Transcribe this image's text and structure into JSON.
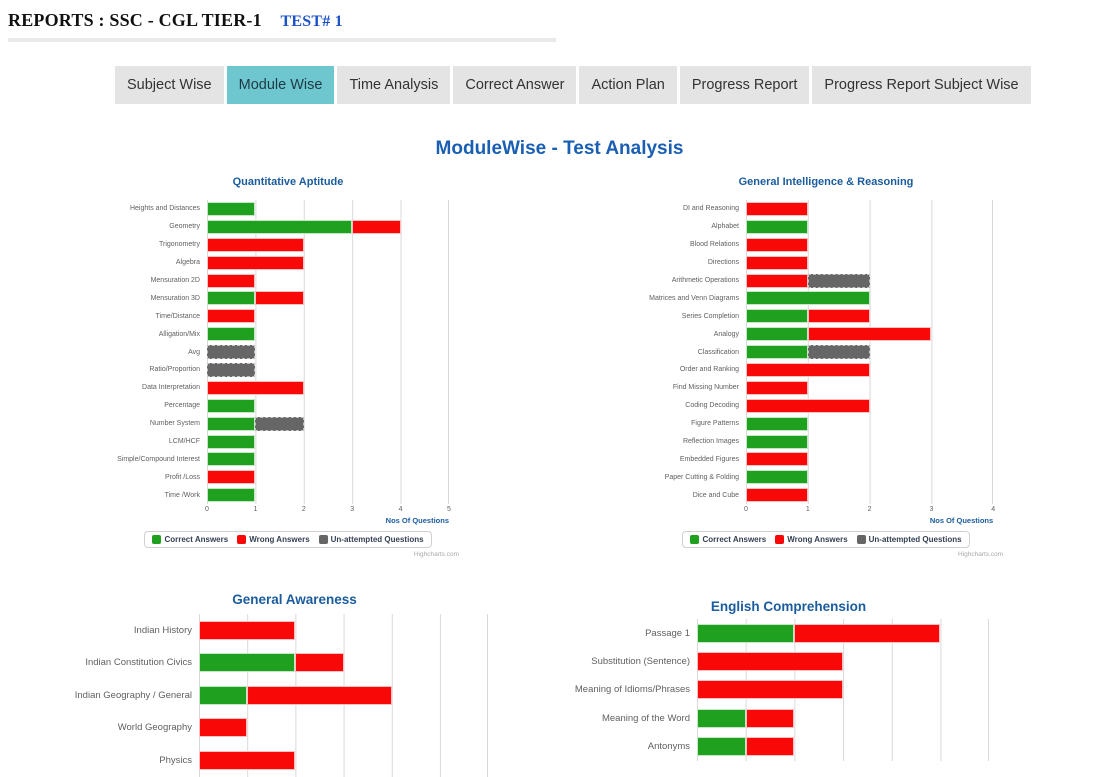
{
  "header": {
    "title": "REPORTS : SSC - CGL TIER-1",
    "test_link": "TEST# 1"
  },
  "tabs": {
    "items": [
      {
        "label": "Subject Wise",
        "active": false
      },
      {
        "label": "Module Wise",
        "active": true
      },
      {
        "label": "Time Analysis",
        "active": false
      },
      {
        "label": "Correct Answer",
        "active": false
      },
      {
        "label": "Action Plan",
        "active": false
      },
      {
        "label": "Progress Report",
        "active": false
      },
      {
        "label": "Progress Report Subject Wise",
        "active": false
      }
    ]
  },
  "page_title": "ModuleWise - Test Analysis",
  "watermark": "Highcharts.com",
  "colors": {
    "correct": "#1fa11f",
    "wrong": "#f90808",
    "unattempted": "#666666",
    "active_tab": "#6ec6cf",
    "page_title_blue": "#1a5fb4",
    "chart_title_blue": "#1a5c9e",
    "test_link_blue": "#1b52c8",
    "gridline": "#d9d9d9"
  },
  "chart_data": [
    {
      "type": "bar",
      "stacked": true,
      "orientation": "horizontal",
      "title": "Quantitative Aptitude",
      "xlabel": "Nos Of Questions",
      "xlim": [
        0,
        5
      ],
      "ticks": [
        0,
        1,
        2,
        3,
        4,
        5
      ],
      "footer_visible": true,
      "categories": [
        "Heights and Distances",
        "Geometry",
        "Trigonometry",
        "Algebra",
        "Mensuration 2D",
        "Mensuration 3D",
        "Time/Distance",
        "Alligation/Mix",
        "Avg",
        "Ratio/Proportion",
        "Data Interpretation",
        "Percentage",
        "Number System",
        "LCM/HCF",
        "Simple/Compound Interest",
        "Profit /Loss",
        "Time /Work"
      ],
      "series": [
        {
          "name": "Correct Answers",
          "color": "#1fa11f",
          "values": [
            1,
            3,
            0,
            0,
            0,
            1,
            0,
            1,
            0,
            0,
            0,
            1,
            1,
            1,
            1,
            0,
            1
          ]
        },
        {
          "name": "Wrong Answers",
          "color": "#f90808",
          "values": [
            0,
            1,
            2,
            2,
            1,
            1,
            1,
            0,
            0,
            0,
            2,
            0,
            0,
            0,
            0,
            1,
            0
          ]
        },
        {
          "name": "Un-attempted Questions",
          "color": "#666666",
          "values": [
            0,
            0,
            0,
            0,
            0,
            0,
            0,
            0,
            1,
            1,
            0,
            0,
            1,
            0,
            0,
            0,
            0
          ]
        }
      ]
    },
    {
      "type": "bar",
      "stacked": true,
      "orientation": "horizontal",
      "title": "General Intelligence & Reasoning",
      "xlabel": "Nos Of Questions",
      "xlim": [
        0,
        4
      ],
      "ticks": [
        0,
        1,
        2,
        3,
        4
      ],
      "footer_visible": true,
      "categories": [
        "DI and Reasoning",
        "Alphabet",
        "Blood Relations",
        "Directions",
        "Arithmetic Operations",
        "Matrices and Venn Diagrams",
        "Series Completion",
        "Analogy",
        "Classification",
        "Order and Ranking",
        "Find Missing Number",
        "Coding Decoding",
        "Figure Patterns",
        "Reflection Images",
        "Embedded Figures",
        "Paper Cutting & Folding",
        "Dice and Cube"
      ],
      "series": [
        {
          "name": "Correct Answers",
          "color": "#1fa11f",
          "values": [
            0,
            1,
            0,
            0,
            0,
            2,
            1,
            1,
            1,
            0,
            0,
            0,
            1,
            1,
            0,
            1,
            0
          ]
        },
        {
          "name": "Wrong Answers",
          "color": "#f90808",
          "values": [
            1,
            0,
            1,
            1,
            1,
            0,
            1,
            2,
            0,
            2,
            1,
            2,
            0,
            0,
            1,
            0,
            1
          ]
        },
        {
          "name": "Un-attempted Questions",
          "color": "#666666",
          "values": [
            0,
            0,
            0,
            0,
            1,
            0,
            0,
            0,
            1,
            0,
            0,
            0,
            0,
            0,
            0,
            0,
            0
          ]
        }
      ]
    },
    {
      "type": "bar",
      "stacked": true,
      "orientation": "horizontal",
      "title": "General Awareness",
      "xlabel": "",
      "xlim": [
        0,
        6
      ],
      "footer_visible": false,
      "categories": [
        "Indian History",
        "Indian Constitution Civics",
        "Indian Geography / General",
        "World Geography",
        "Physics"
      ],
      "series": [
        {
          "name": "Correct Answers",
          "color": "#1fa11f",
          "values": [
            0,
            2,
            1,
            0,
            0
          ]
        },
        {
          "name": "Wrong Answers",
          "color": "#f90808",
          "values": [
            2,
            1,
            3,
            1,
            2
          ]
        },
        {
          "name": "Un-attempted Questions",
          "color": "#666666",
          "values": [
            0,
            0,
            0,
            0,
            0
          ]
        }
      ]
    },
    {
      "type": "bar",
      "stacked": true,
      "orientation": "horizontal",
      "title": "English Comprehension",
      "xlabel": "",
      "xlim": [
        0,
        6
      ],
      "footer_visible": false,
      "categories": [
        "Passage 1",
        "Substitution (Sentence)",
        "Meaning of Idioms/Phrases",
        "Meaning of the Word",
        "Antonyms"
      ],
      "series": [
        {
          "name": "Correct Answers",
          "color": "#1fa11f",
          "values": [
            2,
            0,
            0,
            1,
            1
          ]
        },
        {
          "name": "Wrong Answers",
          "color": "#f90808",
          "values": [
            3,
            3,
            3,
            1,
            1
          ]
        },
        {
          "name": "Un-attempted Questions",
          "color": "#666666",
          "values": [
            0,
            0,
            0,
            0,
            0
          ]
        }
      ]
    }
  ]
}
